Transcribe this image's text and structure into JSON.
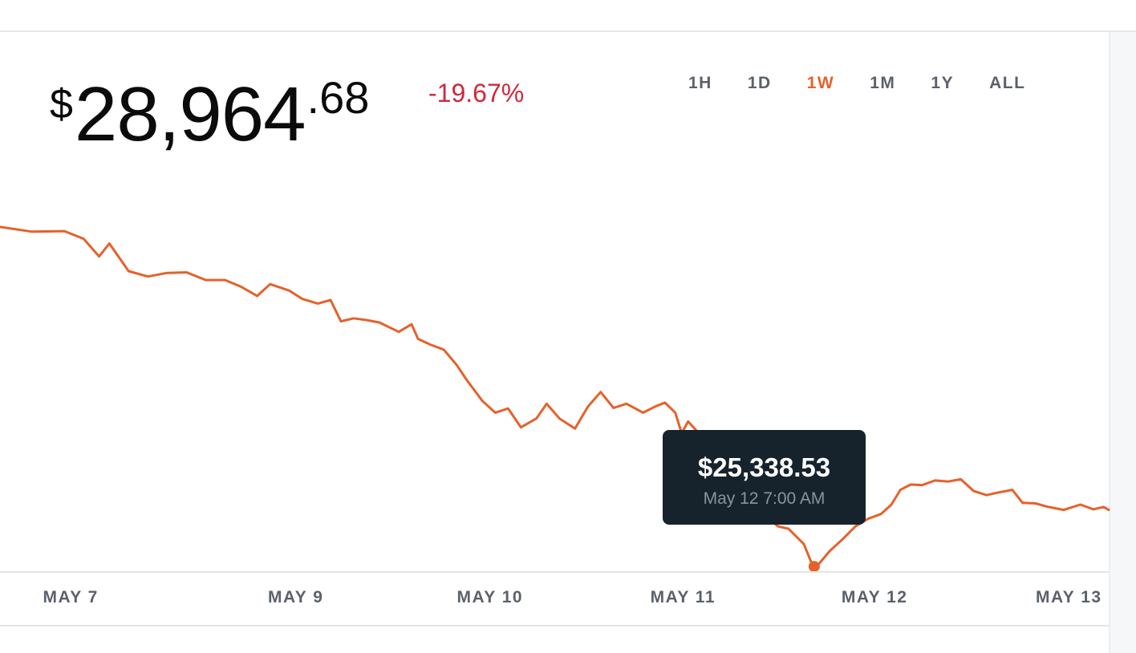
{
  "header": {
    "currency_symbol": "$",
    "price_integer": "28,964",
    "price_decimal": ".68",
    "change_percent": "-19.67%"
  },
  "range_tabs": [
    {
      "label": "1H",
      "active": false
    },
    {
      "label": "1D",
      "active": false
    },
    {
      "label": "1W",
      "active": true
    },
    {
      "label": "1M",
      "active": false
    },
    {
      "label": "1Y",
      "active": false
    },
    {
      "label": "ALL",
      "active": false
    }
  ],
  "tooltip": {
    "value": "$25,338.53",
    "time": "May 12 7:00 AM"
  },
  "colors": {
    "line": "#e4622a",
    "negative": "#d0283a",
    "tooltip_bg": "#17232c",
    "axis_text": "#5b616b"
  },
  "chart_data": {
    "type": "line",
    "title": "",
    "xlabel": "",
    "ylabel": "",
    "grid": false,
    "x_tick_labels": [
      "MAY 7",
      "MAY 9",
      "MAY 10",
      "MAY 11",
      "MAY 12",
      "MAY 13"
    ],
    "x_tick_days": [
      0,
      1.75,
      3.26,
      4.76,
      6.25,
      7.76
    ],
    "xlim": [
      -0.55,
      8.07
    ],
    "ylim": [
      25260,
      31140
    ],
    "series": [
      {
        "values": [
          [
            -0.55,
            31100
          ],
          [
            -0.3,
            31020
          ],
          [
            -0.05,
            31030
          ],
          [
            0.1,
            30900
          ],
          [
            0.22,
            30600
          ],
          [
            0.3,
            30820
          ],
          [
            0.45,
            30350
          ],
          [
            0.6,
            30260
          ],
          [
            0.75,
            30320
          ],
          [
            0.9,
            30330
          ],
          [
            1.05,
            30200
          ],
          [
            1.2,
            30200
          ],
          [
            1.32,
            30090
          ],
          [
            1.45,
            29930
          ],
          [
            1.55,
            30130
          ],
          [
            1.7,
            30020
          ],
          [
            1.8,
            29880
          ],
          [
            1.92,
            29800
          ],
          [
            2.02,
            29860
          ],
          [
            2.1,
            29500
          ],
          [
            2.2,
            29550
          ],
          [
            2.3,
            29520
          ],
          [
            2.4,
            29480
          ],
          [
            2.55,
            29320
          ],
          [
            2.65,
            29450
          ],
          [
            2.7,
            29200
          ],
          [
            2.8,
            29100
          ],
          [
            2.9,
            29020
          ],
          [
            3.0,
            28760
          ],
          [
            3.08,
            28500
          ],
          [
            3.2,
            28150
          ],
          [
            3.3,
            27950
          ],
          [
            3.4,
            28020
          ],
          [
            3.5,
            27700
          ],
          [
            3.62,
            27850
          ],
          [
            3.7,
            28100
          ],
          [
            3.8,
            27850
          ],
          [
            3.92,
            27680
          ],
          [
            4.02,
            28050
          ],
          [
            4.12,
            28300
          ],
          [
            4.22,
            28030
          ],
          [
            4.32,
            28100
          ],
          [
            4.45,
            27950
          ],
          [
            4.55,
            28060
          ],
          [
            4.62,
            28120
          ],
          [
            4.7,
            27950
          ],
          [
            4.75,
            27600
          ],
          [
            4.8,
            27800
          ],
          [
            4.9,
            27560
          ],
          [
            5.0,
            27180
          ],
          [
            5.07,
            27320
          ],
          [
            5.12,
            27130
          ],
          [
            5.18,
            27050
          ],
          [
            5.3,
            26970
          ],
          [
            5.38,
            26230
          ],
          [
            5.5,
            26020
          ],
          [
            5.58,
            25980
          ],
          [
            5.7,
            25720
          ],
          [
            5.77,
            25340
          ],
          [
            5.8,
            25340
          ],
          [
            5.9,
            25600
          ],
          [
            6.0,
            25800
          ],
          [
            6.1,
            26020
          ],
          [
            6.2,
            26150
          ],
          [
            6.3,
            26230
          ],
          [
            6.38,
            26390
          ],
          [
            6.45,
            26640
          ],
          [
            6.53,
            26730
          ],
          [
            6.62,
            26720
          ],
          [
            6.72,
            26800
          ],
          [
            6.82,
            26780
          ],
          [
            6.92,
            26820
          ],
          [
            7.02,
            26620
          ],
          [
            7.12,
            26550
          ],
          [
            7.2,
            26590
          ],
          [
            7.32,
            26640
          ],
          [
            7.4,
            26420
          ],
          [
            7.5,
            26410
          ],
          [
            7.6,
            26350
          ],
          [
            7.72,
            26300
          ],
          [
            7.85,
            26390
          ],
          [
            7.95,
            26310
          ],
          [
            8.03,
            26350
          ],
          [
            8.07,
            26300
          ]
        ]
      }
    ],
    "highlight_point": {
      "x": 5.78,
      "y": 25338.53
    }
  }
}
